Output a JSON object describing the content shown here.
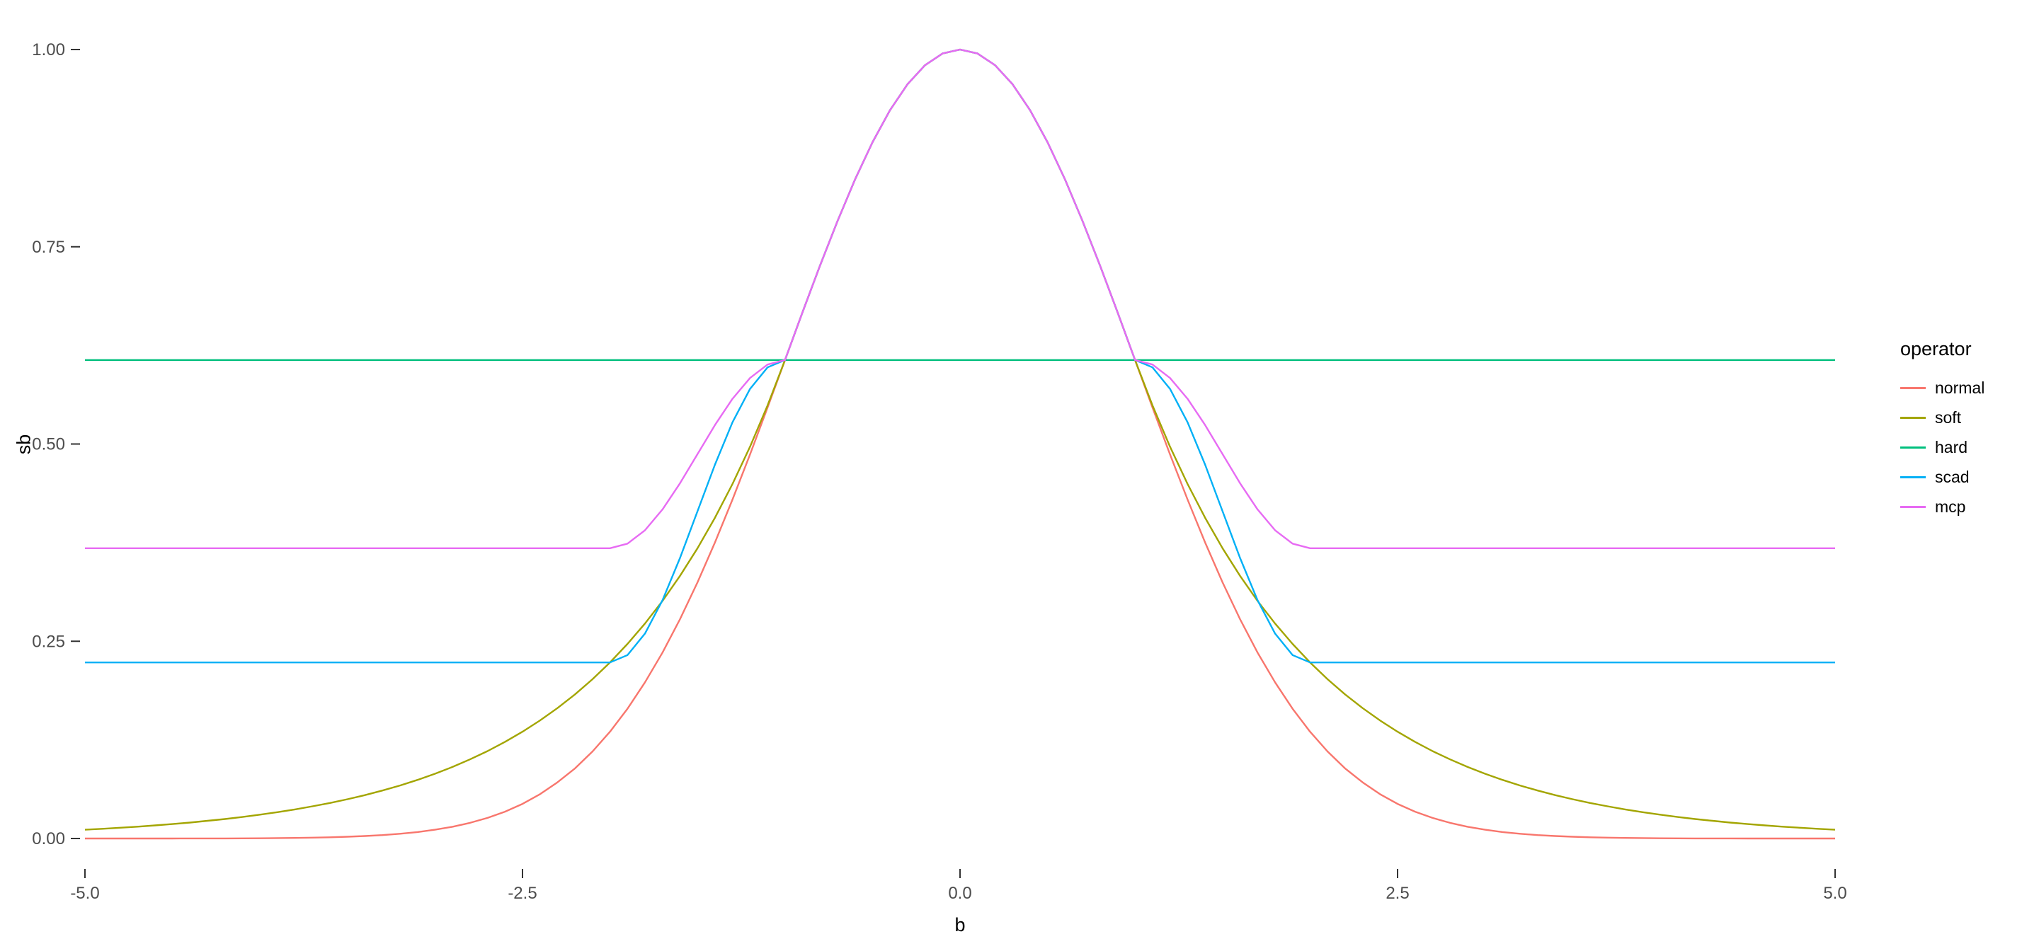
{
  "chart_data": {
    "type": "line",
    "title": "",
    "xlabel": "b",
    "ylabel": "sb",
    "legend_title": "operator",
    "legend_position": "right",
    "grid": false,
    "background": "#FFFFFF",
    "tick_label_color": "#4D4D4D",
    "tick_mark_color": "#333333",
    "xlim": [
      -5,
      5
    ],
    "ylim": [
      0,
      1
    ],
    "x_ticks": [
      -5.0,
      -2.5,
      0.0,
      2.5,
      5.0
    ],
    "x_tick_labels": [
      "-5.0",
      "-2.5",
      "0.0",
      "2.5",
      "5.0"
    ],
    "y_ticks": [
      0,
      0.25,
      0.5,
      0.75,
      1
    ],
    "y_tick_labels": [
      "0.00",
      "0.25",
      "0.50",
      "0.75",
      "1.00"
    ],
    "x": [
      -5,
      -4.9,
      -4.8,
      -4.7,
      -4.6,
      -4.5,
      -4.4,
      -4.3,
      -4.2,
      -4.1,
      -4,
      -3.9,
      -3.8,
      -3.7,
      -3.6,
      -3.5,
      -3.4,
      -3.3,
      -3.2,
      -3.1,
      -3,
      -2.9,
      -2.8,
      -2.7,
      -2.6,
      -2.5,
      -2.4,
      -2.3,
      -2.2,
      -2.1,
      -2,
      -1.9,
      -1.8,
      -1.7,
      -1.6,
      -1.5,
      -1.4,
      -1.3,
      -1.2,
      -1.1,
      -1,
      -0.9,
      -0.8,
      -0.7,
      -0.6,
      -0.5,
      -0.4,
      -0.3,
      -0.2,
      -0.1,
      0,
      0.1,
      0.2,
      0.3,
      0.4,
      0.5,
      0.6,
      0.7,
      0.8,
      0.9,
      1,
      1.1,
      1.2,
      1.3,
      1.4,
      1.5,
      1.6,
      1.7,
      1.8,
      1.9,
      2,
      2.1,
      2.2,
      2.3,
      2.4,
      2.5,
      2.6,
      2.7,
      2.8,
      2.9,
      3,
      3.1,
      3.2,
      3.3,
      3.4,
      3.5,
      3.6,
      3.7,
      3.8,
      3.9,
      4,
      4.1,
      4.2,
      4.3,
      4.4,
      4.5,
      4.6,
      4.7,
      4.8,
      4.9,
      5
    ],
    "series": [
      {
        "name": "normal",
        "color": "#F8766D",
        "values": [
          0.0,
          0.0,
          0.0,
          0.0,
          0.0,
          0.0,
          0.0001,
          0.0001,
          0.0001,
          0.0002,
          0.0003,
          0.0005,
          0.0007,
          0.0011,
          0.0015,
          0.0022,
          0.0031,
          0.0043,
          0.006,
          0.0082,
          0.0111,
          0.0149,
          0.0198,
          0.0261,
          0.034,
          0.0439,
          0.0561,
          0.0712,
          0.0889,
          0.1103,
          0.1353,
          0.1645,
          0.1979,
          0.2357,
          0.278,
          0.3247,
          0.3753,
          0.4296,
          0.4868,
          0.5461,
          0.6065,
          0.667,
          0.7261,
          0.7827,
          0.8353,
          0.8825,
          0.9231,
          0.956,
          0.9802,
          0.995,
          1.0,
          0.995,
          0.9802,
          0.956,
          0.9231,
          0.8825,
          0.8353,
          0.7827,
          0.7261,
          0.667,
          0.6065,
          0.5461,
          0.4868,
          0.4296,
          0.3753,
          0.3247,
          0.278,
          0.2357,
          0.1979,
          0.1645,
          0.1353,
          0.1103,
          0.0889,
          0.0712,
          0.0561,
          0.0439,
          0.034,
          0.0261,
          0.0198,
          0.0149,
          0.0111,
          0.0082,
          0.006,
          0.0043,
          0.0031,
          0.0022,
          0.0015,
          0.0011,
          0.0007,
          0.0005,
          0.0003,
          0.0002,
          0.0001,
          0.0001,
          0.0001,
          0.0,
          0.0,
          0.0,
          0.0,
          0.0,
          0.0
        ]
      },
      {
        "name": "soft",
        "color": "#A3A500",
        "values": [
          0.0111,
          0.0123,
          0.0136,
          0.015,
          0.0166,
          0.0183,
          0.0202,
          0.0224,
          0.0247,
          0.0273,
          0.0302,
          0.0334,
          0.0369,
          0.0408,
          0.045,
          0.0498,
          0.055,
          0.0608,
          0.0672,
          0.0743,
          0.0821,
          0.0907,
          0.1003,
          0.1108,
          0.1225,
          0.1353,
          0.1496,
          0.1653,
          0.1827,
          0.2019,
          0.2231,
          0.2466,
          0.2725,
          0.3012,
          0.3329,
          0.3679,
          0.4066,
          0.4493,
          0.4966,
          0.5488,
          0.6065,
          0.667,
          0.7261,
          0.7827,
          0.8353,
          0.8825,
          0.9231,
          0.956,
          0.9802,
          0.995,
          1.0,
          0.995,
          0.9802,
          0.956,
          0.9231,
          0.8825,
          0.8353,
          0.7827,
          0.7261,
          0.667,
          0.6065,
          0.5488,
          0.4966,
          0.4493,
          0.4066,
          0.3679,
          0.3329,
          0.3012,
          0.2725,
          0.2466,
          0.2231,
          0.2019,
          0.1827,
          0.1653,
          0.1496,
          0.1353,
          0.1225,
          0.1108,
          0.1003,
          0.0907,
          0.0821,
          0.0743,
          0.0672,
          0.0608,
          0.055,
          0.0498,
          0.045,
          0.0408,
          0.0369,
          0.0334,
          0.0302,
          0.0273,
          0.0247,
          0.0224,
          0.0202,
          0.0183,
          0.0166,
          0.015,
          0.0136,
          0.0123,
          0.0111
        ]
      },
      {
        "name": "hard",
        "color": "#00BF7D",
        "values": [
          0.6065,
          0.6065,
          0.6065,
          0.6065,
          0.6065,
          0.6065,
          0.6065,
          0.6065,
          0.6065,
          0.6065,
          0.6065,
          0.6065,
          0.6065,
          0.6065,
          0.6065,
          0.6065,
          0.6065,
          0.6065,
          0.6065,
          0.6065,
          0.6065,
          0.6065,
          0.6065,
          0.6065,
          0.6065,
          0.6065,
          0.6065,
          0.6065,
          0.6065,
          0.6065,
          0.6065,
          0.6065,
          0.6065,
          0.6065,
          0.6065,
          0.6065,
          0.6065,
          0.6065,
          0.6065,
          0.6065,
          0.6065,
          0.6065,
          0.6065,
          0.6065,
          0.6065,
          0.6065,
          0.6065,
          0.6065,
          0.6065,
          0.6065,
          0.6065,
          0.6065,
          0.6065,
          0.6065,
          0.6065,
          0.6065,
          0.6065,
          0.6065,
          0.6065,
          0.6065,
          0.6065,
          0.6065,
          0.6065,
          0.6065,
          0.6065,
          0.6065,
          0.6065,
          0.6065,
          0.6065,
          0.6065,
          0.6065,
          0.6065,
          0.6065,
          0.6065,
          0.6065,
          0.6065,
          0.6065,
          0.6065,
          0.6065,
          0.6065,
          0.6065,
          0.6065,
          0.6065,
          0.6065,
          0.6065,
          0.6065,
          0.6065,
          0.6065,
          0.6065,
          0.6065,
          0.6065,
          0.6065,
          0.6065,
          0.6065,
          0.6065,
          0.6065,
          0.6065,
          0.6065,
          0.6065,
          0.6065,
          0.6065
        ]
      },
      {
        "name": "scad",
        "color": "#00B0F6",
        "values": [
          0.2231,
          0.2231,
          0.2231,
          0.2231,
          0.2231,
          0.2231,
          0.2231,
          0.2231,
          0.2231,
          0.2231,
          0.2231,
          0.2231,
          0.2231,
          0.2231,
          0.2231,
          0.2231,
          0.2231,
          0.2231,
          0.2231,
          0.2231,
          0.2231,
          0.2231,
          0.2231,
          0.2231,
          0.2231,
          0.2231,
          0.2231,
          0.2231,
          0.2231,
          0.2231,
          0.2231,
          0.2325,
          0.2597,
          0.3021,
          0.3556,
          0.4148,
          0.474,
          0.5275,
          0.5699,
          0.5971,
          0.6065,
          0.667,
          0.7261,
          0.7827,
          0.8353,
          0.8825,
          0.9231,
          0.956,
          0.9802,
          0.995,
          1.0,
          0.995,
          0.9802,
          0.956,
          0.9231,
          0.8825,
          0.8353,
          0.7827,
          0.7261,
          0.667,
          0.6065,
          0.5971,
          0.5699,
          0.5275,
          0.474,
          0.4148,
          0.3556,
          0.3021,
          0.2597,
          0.2325,
          0.2231,
          0.2231,
          0.2231,
          0.2231,
          0.2231,
          0.2231,
          0.2231,
          0.2231,
          0.2231,
          0.2231,
          0.2231,
          0.2231,
          0.2231,
          0.2231,
          0.2231,
          0.2231,
          0.2231,
          0.2231,
          0.2231,
          0.2231,
          0.2231,
          0.2231,
          0.2231,
          0.2231,
          0.2231,
          0.2231,
          0.2231,
          0.2231,
          0.2231,
          0.2231,
          0.2231
        ]
      },
      {
        "name": "mcp",
        "color": "#E76BF3",
        "values": [
          0.3679,
          0.3679,
          0.3679,
          0.3679,
          0.3679,
          0.3679,
          0.3679,
          0.3679,
          0.3679,
          0.3679,
          0.3679,
          0.3679,
          0.3679,
          0.3679,
          0.3679,
          0.3679,
          0.3679,
          0.3679,
          0.3679,
          0.3679,
          0.3679,
          0.3679,
          0.3679,
          0.3679,
          0.3679,
          0.3679,
          0.3679,
          0.3679,
          0.3679,
          0.3679,
          0.3679,
          0.3737,
          0.3907,
          0.4171,
          0.4503,
          0.4872,
          0.5241,
          0.5573,
          0.5837,
          0.6007,
          0.6065,
          0.667,
          0.7261,
          0.7827,
          0.8353,
          0.8825,
          0.9231,
          0.956,
          0.9802,
          0.995,
          1.0,
          0.995,
          0.9802,
          0.956,
          0.9231,
          0.8825,
          0.8353,
          0.7827,
          0.7261,
          0.667,
          0.6065,
          0.6007,
          0.5837,
          0.5573,
          0.5241,
          0.4872,
          0.4503,
          0.4171,
          0.3907,
          0.3737,
          0.3679,
          0.3679,
          0.3679,
          0.3679,
          0.3679,
          0.3679,
          0.3679,
          0.3679,
          0.3679,
          0.3679,
          0.3679,
          0.3679,
          0.3679,
          0.3679,
          0.3679,
          0.3679,
          0.3679,
          0.3679,
          0.3679,
          0.3679,
          0.3679,
          0.3679,
          0.3679,
          0.3679,
          0.3679,
          0.3679,
          0.3679,
          0.3679,
          0.3679,
          0.3679,
          0.3679
        ]
      }
    ]
  }
}
